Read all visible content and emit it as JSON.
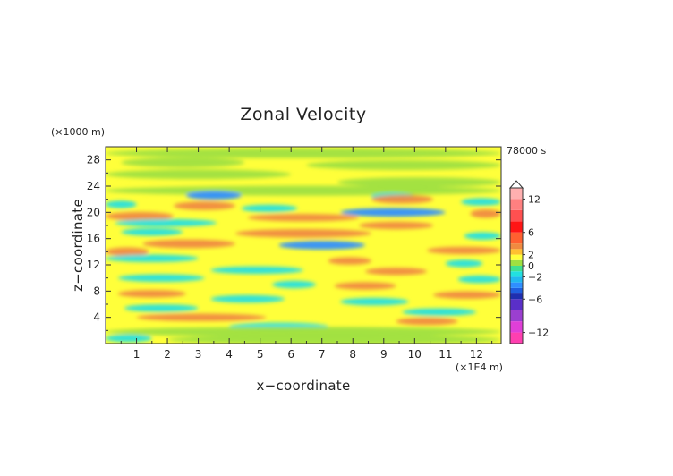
{
  "chart_data": {
    "type": "heatmap",
    "title": "Zonal Velocity",
    "xlabel": "x−coordinate",
    "ylabel": "z−coordinate",
    "x_unit": "(×1E4 m)",
    "y_unit": "(×1000 m)",
    "time_label": "78000 s",
    "xlim": [
      0,
      12.8
    ],
    "ylim": [
      0,
      30
    ],
    "x_ticks": [
      "1",
      "2",
      "3",
      "4",
      "5",
      "6",
      "7",
      "8",
      "9",
      "10",
      "11",
      "12"
    ],
    "y_ticks": [
      "4",
      "8",
      "12",
      "16",
      "20",
      "24",
      "28"
    ],
    "colorbar": {
      "labels": [
        "12",
        "6",
        "2",
        "0",
        "−2",
        "−6",
        "−12"
      ],
      "extend": "max"
    },
    "palette": {
      "neg_magenta": "#ff3fb0",
      "neg_purple": "#9b3fd0",
      "neg_navy": "#1f2fb0",
      "neg_blue": "#2f8fff",
      "neg_cyan": "#22e0e0",
      "near_zero_green": "#9fe040",
      "background_yellow": "#ffff3a",
      "pos_orange": "#f08a40",
      "pos_red": "#ff1515",
      "pos_pink": "#ffb0b0"
    },
    "bands": [
      {
        "z": 29.0,
        "x0": 0.0,
        "x1": 12.8,
        "value": 0.5
      },
      {
        "z": 27.6,
        "x0": 0.5,
        "x1": 4.5,
        "value": 0.5
      },
      {
        "z": 27.2,
        "x0": 6.5,
        "x1": 12.8,
        "value": 0.4
      },
      {
        "z": 25.8,
        "x0": 0.0,
        "x1": 6.0,
        "value": 0.4
      },
      {
        "z": 24.6,
        "x0": 7.5,
        "x1": 12.8,
        "value": 0.5
      },
      {
        "z": 23.3,
        "x0": 0.0,
        "x1": 12.8,
        "value": 0.4
      },
      {
        "z": 22.6,
        "x0": 2.6,
        "x1": 4.4,
        "value": -3.5
      },
      {
        "z": 22.4,
        "x0": 8.6,
        "x1": 10.0,
        "value": -2.2
      },
      {
        "z": 22.0,
        "x0": 8.6,
        "x1": 10.6,
        "value": 3.0
      },
      {
        "z": 21.6,
        "x0": 11.5,
        "x1": 12.8,
        "value": -2.2
      },
      {
        "z": 21.2,
        "x0": 0.0,
        "x1": 1.0,
        "value": -2.0
      },
      {
        "z": 21.0,
        "x0": 2.2,
        "x1": 4.2,
        "value": 3.5
      },
      {
        "z": 20.6,
        "x0": 4.4,
        "x1": 6.2,
        "value": -2.2
      },
      {
        "z": 20.0,
        "x0": 7.6,
        "x1": 11.0,
        "value": -4.0
      },
      {
        "z": 19.8,
        "x0": 11.8,
        "x1": 12.8,
        "value": 3.0
      },
      {
        "z": 19.4,
        "x0": 0.0,
        "x1": 2.2,
        "value": 3.5
      },
      {
        "z": 19.2,
        "x0": 4.6,
        "x1": 8.2,
        "value": 2.6
      },
      {
        "z": 18.4,
        "x0": 0.3,
        "x1": 3.6,
        "value": -1.8
      },
      {
        "z": 18.0,
        "x0": 8.2,
        "x1": 10.6,
        "value": 2.4
      },
      {
        "z": 17.0,
        "x0": 0.5,
        "x1": 2.5,
        "value": -2.4
      },
      {
        "z": 16.8,
        "x0": 4.2,
        "x1": 8.6,
        "value": 3.5
      },
      {
        "z": 16.4,
        "x0": 11.6,
        "x1": 12.8,
        "value": -2.0
      },
      {
        "z": 15.2,
        "x0": 1.2,
        "x1": 4.2,
        "value": 3.2
      },
      {
        "z": 15.0,
        "x0": 5.6,
        "x1": 8.4,
        "value": -3.4
      },
      {
        "z": 14.2,
        "x0": 10.4,
        "x1": 12.8,
        "value": 2.4
      },
      {
        "z": 14.0,
        "x0": 0.0,
        "x1": 1.4,
        "value": 3.2
      },
      {
        "z": 13.0,
        "x0": 0.0,
        "x1": 3.0,
        "value": -1.6
      },
      {
        "z": 12.6,
        "x0": 7.2,
        "x1": 8.6,
        "value": 2.6
      },
      {
        "z": 12.2,
        "x0": 11.0,
        "x1": 12.2,
        "value": -1.8
      },
      {
        "z": 11.2,
        "x0": 3.4,
        "x1": 6.4,
        "value": -1.6
      },
      {
        "z": 11.0,
        "x0": 8.4,
        "x1": 10.4,
        "value": 2.6
      },
      {
        "z": 10.0,
        "x0": 0.4,
        "x1": 3.2,
        "value": -1.4
      },
      {
        "z": 9.8,
        "x0": 11.4,
        "x1": 12.8,
        "value": -1.8
      },
      {
        "z": 9.0,
        "x0": 5.4,
        "x1": 6.8,
        "value": -1.4
      },
      {
        "z": 8.8,
        "x0": 7.4,
        "x1": 9.4,
        "value": 2.8
      },
      {
        "z": 7.6,
        "x0": 0.4,
        "x1": 2.6,
        "value": 2.6
      },
      {
        "z": 7.4,
        "x0": 10.6,
        "x1": 12.8,
        "value": 2.6
      },
      {
        "z": 6.8,
        "x0": 3.4,
        "x1": 5.8,
        "value": -1.4
      },
      {
        "z": 6.4,
        "x0": 7.6,
        "x1": 9.8,
        "value": -2.4
      },
      {
        "z": 5.4,
        "x0": 0.6,
        "x1": 3.0,
        "value": -1.8
      },
      {
        "z": 4.8,
        "x0": 9.6,
        "x1": 12.0,
        "value": -1.6
      },
      {
        "z": 4.0,
        "x0": 1.0,
        "x1": 5.2,
        "value": 2.6
      },
      {
        "z": 3.4,
        "x0": 9.4,
        "x1": 11.4,
        "value": 2.4
      },
      {
        "z": 2.6,
        "x0": 4.0,
        "x1": 7.2,
        "value": -1.6
      },
      {
        "z": 1.8,
        "x0": 0.0,
        "x1": 12.8,
        "value": 0.5
      },
      {
        "z": 0.8,
        "x0": 0.0,
        "x1": 1.5,
        "value": -1.6
      },
      {
        "z": 0.6,
        "x0": 2.0,
        "x1": 12.8,
        "value": 0.5
      }
    ]
  }
}
